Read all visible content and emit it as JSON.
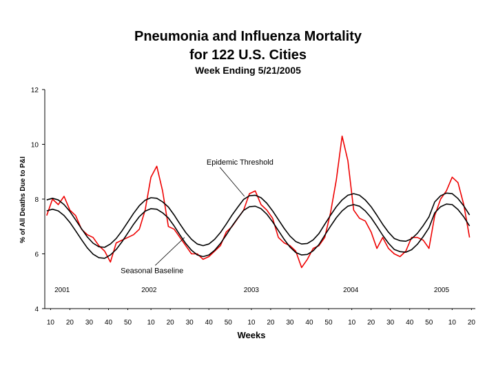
{
  "chart_data": {
    "type": "line",
    "title": [
      "Pneumonia and Influenza Mortality",
      "for 122 U.S. Cities"
    ],
    "subtitle": "Week Ending 5/21/2005",
    "xlabel": "Weeks",
    "ylabel": "% of All Deaths Due to P&I",
    "xlim": [
      7,
      230
    ],
    "ylim": [
      4,
      12
    ],
    "yticks": [
      4,
      6,
      8,
      10,
      12
    ],
    "xticks": [
      10,
      20,
      30,
      40,
      50,
      {
        "value": 62,
        "label": "10"
      },
      {
        "value": 72,
        "label": "20"
      },
      {
        "value": 82,
        "label": "30"
      },
      {
        "value": 92,
        "label": "40"
      },
      {
        "value": 102,
        "label": "50"
      },
      {
        "value": 114,
        "label": "10"
      },
      {
        "value": 124,
        "label": "20"
      },
      {
        "value": 134,
        "label": "30"
      },
      {
        "value": 144,
        "label": "40"
      },
      {
        "value": 154,
        "label": "50"
      },
      {
        "value": 166,
        "label": "10"
      },
      {
        "value": 176,
        "label": "20"
      },
      {
        "value": 186,
        "label": "30"
      },
      {
        "value": 196,
        "label": "40"
      },
      {
        "value": 206,
        "label": "50"
      },
      {
        "value": 218,
        "label": "10"
      },
      {
        "value": 228,
        "label": "20"
      }
    ],
    "year_labels": [
      {
        "text": "2001",
        "x": 16,
        "y": 4.6
      },
      {
        "text": "2002",
        "x": 61,
        "y": 4.6
      },
      {
        "text": "2003",
        "x": 114,
        "y": 4.6
      },
      {
        "text": "2004",
        "x": 165.5,
        "y": 4.6
      },
      {
        "text": "2005",
        "x": 212.5,
        "y": 4.6
      }
    ],
    "annotations": [
      {
        "text": "Epidemic Threshold",
        "x": 110.4,
        "y": 8.1,
        "xytext": [
          90.8,
          9.36
        ]
      },
      {
        "text": "Seasonal Baseline",
        "x": 79.4,
        "y": 6.6,
        "xytext": [
          46.3,
          5.4
        ]
      }
    ],
    "x": [
      8,
      11,
      14,
      17,
      20,
      23,
      26,
      29,
      32,
      35,
      38,
      41,
      44,
      47,
      50,
      53,
      56,
      59,
      62,
      65,
      68,
      71,
      74,
      77,
      80,
      83,
      86,
      89,
      92,
      95,
      98,
      101,
      104,
      107,
      110,
      113,
      116,
      119,
      122,
      125,
      128,
      131,
      134,
      137,
      140,
      143,
      146,
      149,
      152,
      155,
      158,
      161,
      164,
      167,
      170,
      173,
      176,
      179,
      182,
      185,
      188,
      191,
      194,
      197,
      200,
      203,
      206,
      209,
      212,
      215,
      218,
      221,
      224,
      227
    ],
    "series": [
      {
        "color": "#ee0000",
        "values": [
          7.4,
          8.0,
          7.8,
          8.1,
          7.6,
          7.4,
          6.9,
          6.7,
          6.6,
          6.3,
          6.1,
          5.7,
          6.4,
          6.5,
          6.6,
          6.7,
          6.9,
          7.6,
          8.8,
          9.2,
          8.3,
          7.0,
          6.9,
          6.6,
          6.3,
          6.0,
          6.0,
          5.8,
          5.9,
          6.1,
          6.3,
          6.8,
          7.0,
          7.3,
          7.6,
          8.2,
          8.3,
          7.8,
          7.6,
          7.3,
          6.6,
          6.4,
          6.3,
          6.1,
          5.5,
          5.8,
          6.2,
          6.3,
          6.6,
          7.5,
          8.7,
          10.3,
          9.4,
          7.6,
          7.3,
          7.2,
          6.8,
          6.2,
          6.6,
          6.2,
          6.0,
          5.9,
          6.1,
          6.6,
          6.6,
          6.5,
          6.2,
          7.4,
          8.0,
          8.3,
          8.8,
          8.6,
          7.8,
          6.6
        ]
      },
      {
        "color": "#000000",
        "values": [
          7.97,
          8.03,
          7.97,
          7.8,
          7.55,
          7.24,
          6.92,
          6.62,
          6.39,
          6.26,
          6.24,
          6.36,
          6.56,
          6.84,
          7.16,
          7.48,
          7.76,
          7.96,
          8.05,
          8.03,
          7.9,
          7.71,
          7.42,
          7.09,
          6.78,
          6.53,
          6.36,
          6.3,
          6.36,
          6.53,
          6.78,
          7.09,
          7.42,
          7.71,
          7.99,
          8.12,
          8.14,
          8.05,
          7.85,
          7.57,
          7.25,
          6.93,
          6.65,
          6.45,
          6.36,
          6.38,
          6.51,
          6.74,
          7.08,
          7.41,
          7.72,
          7.97,
          8.14,
          8.2,
          8.14,
          7.97,
          7.72,
          7.41,
          7.08,
          6.79,
          6.56,
          6.48,
          6.46,
          6.55,
          6.75,
          7.03,
          7.35,
          7.9,
          8.12,
          8.22,
          8.2,
          8.02,
          7.75,
          7.42
        ]
      },
      {
        "color": "#000000",
        "values": [
          7.57,
          7.63,
          7.57,
          7.4,
          7.15,
          6.84,
          6.52,
          6.22,
          5.99,
          5.86,
          5.84,
          5.96,
          6.16,
          6.44,
          6.76,
          7.08,
          7.36,
          7.56,
          7.65,
          7.63,
          7.5,
          7.31,
          7.02,
          6.69,
          6.38,
          6.13,
          5.96,
          5.9,
          5.96,
          6.13,
          6.38,
          6.69,
          7.02,
          7.31,
          7.59,
          7.72,
          7.74,
          7.65,
          7.45,
          7.17,
          6.85,
          6.53,
          6.25,
          6.05,
          5.96,
          5.98,
          6.11,
          6.34,
          6.68,
          7.01,
          7.32,
          7.57,
          7.74,
          7.8,
          7.74,
          7.57,
          7.32,
          7.01,
          6.68,
          6.39,
          6.16,
          6.08,
          6.06,
          6.15,
          6.35,
          6.63,
          6.95,
          7.5,
          7.72,
          7.82,
          7.8,
          7.62,
          7.35,
          7.02
        ]
      }
    ]
  }
}
